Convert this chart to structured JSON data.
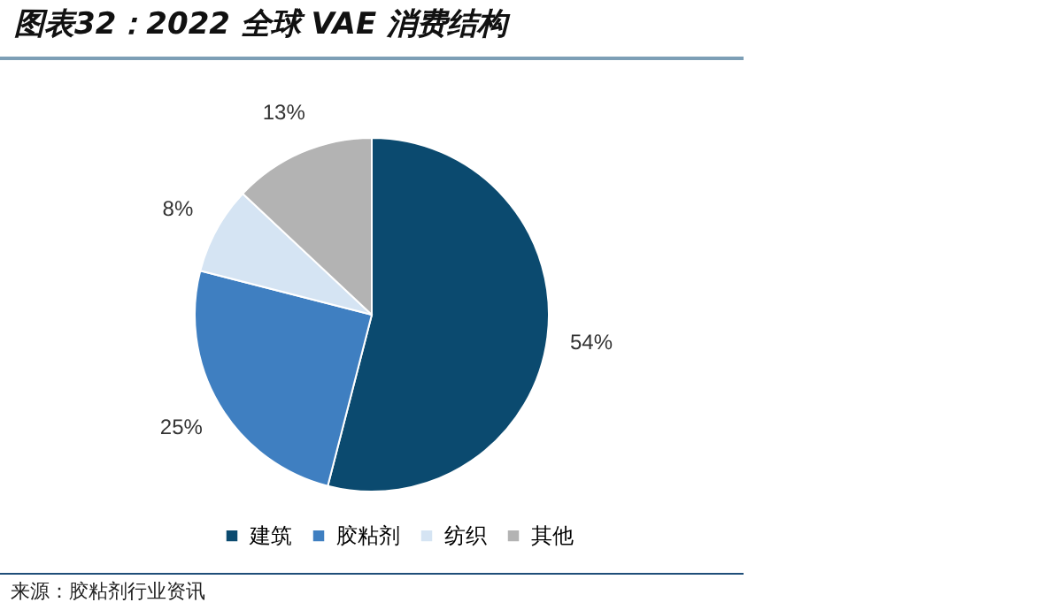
{
  "chart_data": {
    "type": "pie",
    "title": "图表32：2022 全球 VAE 消费结构",
    "categories": [
      "建筑",
      "胶粘剂",
      "纺织",
      "其他"
    ],
    "values": [
      54,
      25,
      8,
      13
    ],
    "colors": [
      "#0b4a6f",
      "#3f7fc1",
      "#d5e4f3",
      "#b3b3b3"
    ],
    "value_labels": [
      "54%",
      "25%",
      "8%",
      "13%"
    ],
    "legend": "bottom",
    "annotations": [
      "来源：胶粘剂行业资讯"
    ]
  }
}
